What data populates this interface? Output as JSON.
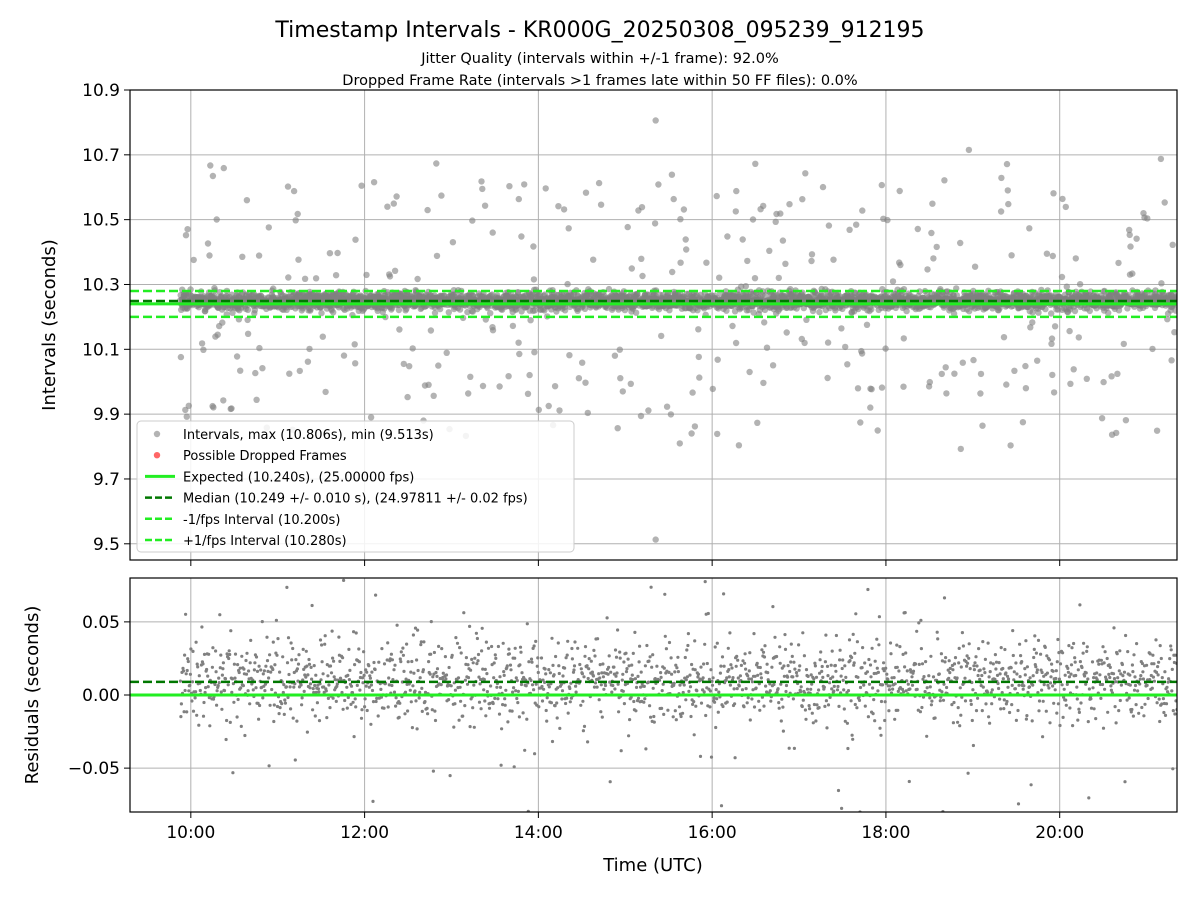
{
  "title": "Timestamp Intervals - KR000G_20250308_095239_912195",
  "subtitle_lines": [
    "Jitter Quality (intervals within +/-1 frame): 92.0%",
    "Dropped Frame Rate (intervals >1 frames late within 50 FF files): 0.0%"
  ],
  "colors": {
    "points": "#808080",
    "dropped": "#ff4040",
    "expected": "#22ee22",
    "median": "#007700",
    "bounds": "#22ee22"
  },
  "chart_data": [
    {
      "type": "scatter",
      "panel": "intervals",
      "xlabel": "",
      "ylabel": "Intervals (seconds)",
      "xlim_hours": [
        9.3,
        21.35
      ],
      "ylim": [
        9.45,
        10.9
      ],
      "yticks": [
        9.5,
        9.7,
        9.9,
        10.1,
        10.3,
        10.5,
        10.7,
        10.9
      ],
      "ytick_labels": [
        "9.5",
        "9.7",
        "9.9",
        "10.1",
        "10.3",
        "10.5",
        "10.7",
        "10.9"
      ],
      "grid": true,
      "legend_position": "lower-left",
      "lines": {
        "expected": 10.24,
        "median": 10.249,
        "minus_1_fps": 10.2,
        "plus_1_fps": 10.28
      },
      "legend": [
        {
          "key": "points",
          "label": "Intervals, max (10.806s), min (9.513s)"
        },
        {
          "key": "dropped",
          "label": "Possible Dropped Frames"
        },
        {
          "key": "expected",
          "label": "Expected (10.240s), (25.00000 fps)"
        },
        {
          "key": "median",
          "label": "Median (10.249 +/- 0.010 s), (24.97811 +/- 0.02 fps)"
        },
        {
          "key": "minus",
          "label": "-1/fps Interval (10.200s)"
        },
        {
          "key": "plus",
          "label": "+1/fps Interval (10.280s)"
        }
      ],
      "sampling": {
        "start_hour": 9.88,
        "end_hour": 21.35,
        "count": 3900,
        "spread": 0.022,
        "outlier_fraction": 0.1
      },
      "extremes": {
        "max": 10.806,
        "min": 9.513
      }
    },
    {
      "type": "scatter",
      "panel": "residuals",
      "xlabel": "Time (UTC)",
      "ylabel": "Residuals (seconds)",
      "xlim_hours": [
        9.3,
        21.35
      ],
      "ylim": [
        -0.08,
        0.08
      ],
      "yticks": [
        -0.05,
        0.0,
        0.05
      ],
      "ytick_labels": [
        "−0.05",
        "0.00",
        "0.05"
      ],
      "xticks_hours": [
        10,
        12,
        14,
        16,
        18,
        20
      ],
      "xtick_labels": [
        "10:00",
        "12:00",
        "14:00",
        "16:00",
        "18:00",
        "20:00"
      ],
      "grid": true,
      "lines": {
        "zero": 0.0,
        "median": 0.009
      },
      "sampling": {
        "count": 1900,
        "spread": 0.02
      }
    }
  ]
}
